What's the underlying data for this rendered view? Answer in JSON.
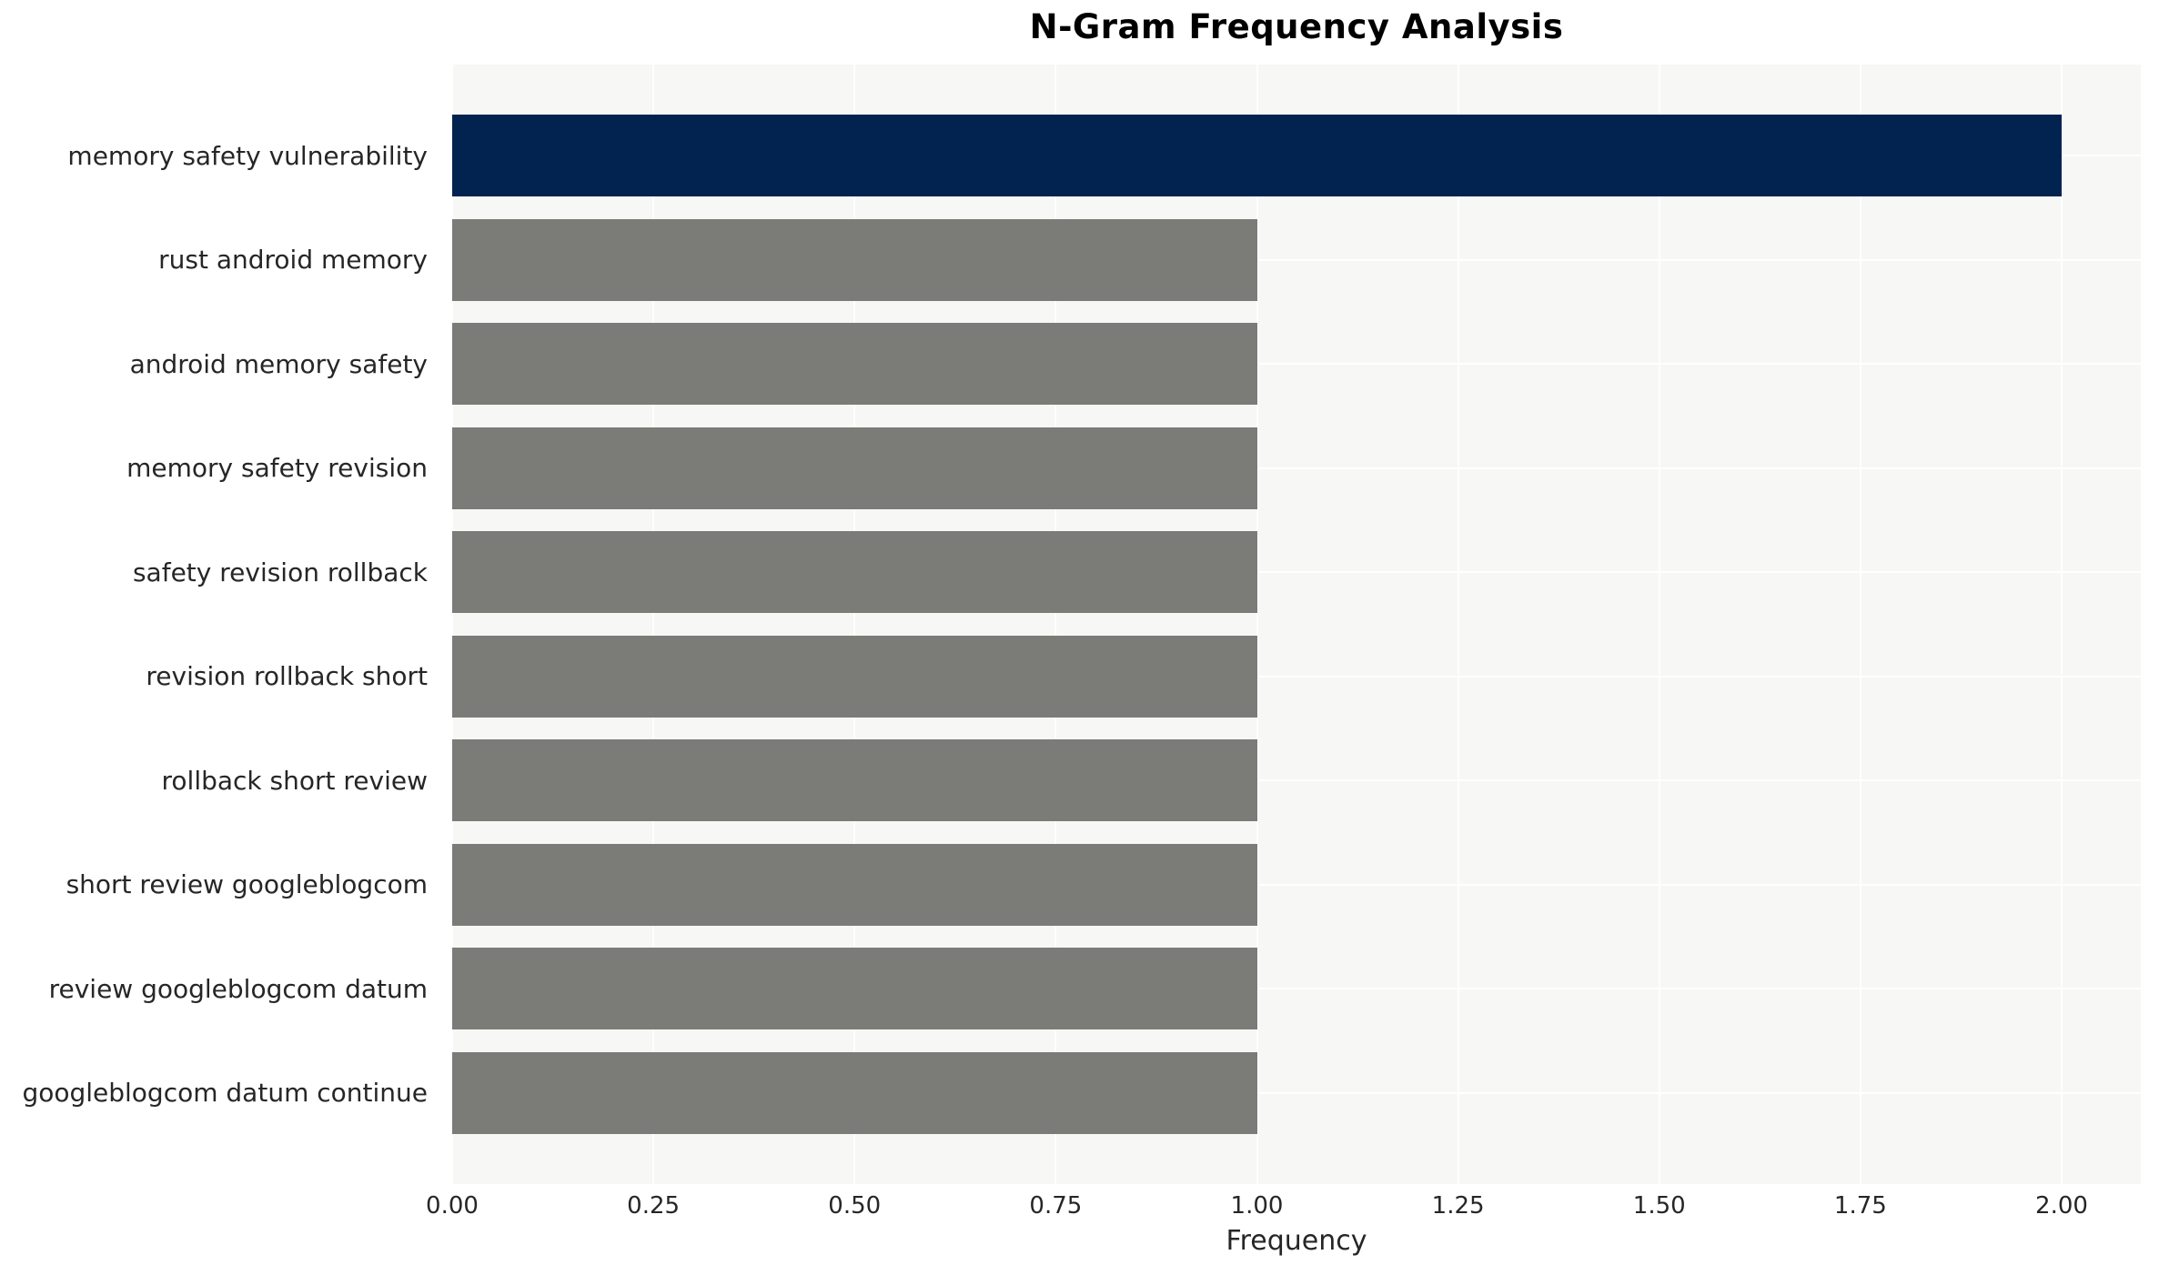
{
  "title": "N-Gram Frequency Analysis",
  "chart_data": {
    "type": "bar",
    "orientation": "horizontal",
    "title": "N-Gram Frequency Analysis",
    "xlabel": "Frequency",
    "ylabel": "",
    "categories": [
      "memory safety vulnerability",
      "rust android memory",
      "android memory safety",
      "memory safety revision",
      "safety revision rollback",
      "revision rollback short",
      "rollback short review",
      "short review googleblogcom",
      "review googleblogcom datum",
      "googleblogcom datum continue"
    ],
    "values": [
      2,
      1,
      1,
      1,
      1,
      1,
      1,
      1,
      1,
      1
    ],
    "xlim": [
      0,
      2.1
    ],
    "xticks": [
      0.0,
      0.25,
      0.5,
      0.75,
      1.0,
      1.25,
      1.5,
      1.75,
      2.0
    ],
    "xtick_labels": [
      "0.00",
      "0.25",
      "0.50",
      "0.75",
      "1.00",
      "1.25",
      "1.50",
      "1.75",
      "2.00"
    ],
    "grid": true,
    "legend_position": "none",
    "colors": {
      "highlight_bar": "#022350",
      "default_bar": "#7b7b78",
      "bar_colors": [
        "#022350",
        "#7b7b78",
        "#7b7b78",
        "#7b7b78",
        "#7b7b78",
        "#7b7b78",
        "#7b7b78",
        "#7b7b78",
        "#7b7b78",
        "#7b7b78"
      ],
      "plot_background": "#f7f7f6",
      "gridline": "#ffffff",
      "text": "#262626",
      "title_text": "#000000",
      "figure_background": "#ffffff"
    }
  }
}
